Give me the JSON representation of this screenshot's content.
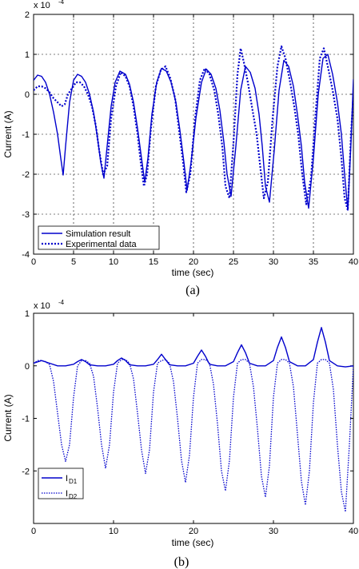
{
  "chart_data": [
    {
      "type": "line",
      "panel_caption": "(a)",
      "xlabel": "time (sec)",
      "ylabel": "Current (A)",
      "y_exponent_label": "x 10",
      "y_exponent_power": "-4",
      "xlim": [
        0,
        40
      ],
      "ylim": [
        -4,
        2
      ],
      "xticks": [
        "0",
        "5",
        "10",
        "15",
        "20",
        "25",
        "30",
        "35",
        "40"
      ],
      "yticks": [
        "-4",
        "-3",
        "-2",
        "-1",
        "0",
        "1",
        "2"
      ],
      "grid": true,
      "legend_position": "bottom-left",
      "color": "#0000cc",
      "series": [
        {
          "name": "Simulation result",
          "style": "solid",
          "x": [
            0,
            0.5,
            1,
            1.5,
            2,
            2.5,
            3,
            3.4,
            3.7,
            4,
            4.5,
            5,
            5.5,
            6,
            6.5,
            7,
            7.5,
            8,
            8.4,
            8.8,
            9.2,
            9.7,
            10.2,
            10.8,
            11.5,
            12,
            12.5,
            13,
            13.5,
            13.9,
            14.3,
            14.8,
            15.4,
            16,
            16.6,
            17.2,
            17.8,
            18.3,
            18.8,
            19.2,
            19.7,
            20.3,
            21,
            21.6,
            22.2,
            22.8,
            23.3,
            23.8,
            24.2,
            24.7,
            25.3,
            25.9,
            26.5,
            27.1,
            27.7,
            28.2,
            28.6,
            29,
            29.5,
            30.1,
            30.7,
            31.3,
            31.9,
            32.5,
            33,
            33.5,
            33.9,
            34.4,
            35,
            35.6,
            36.2,
            36.8,
            37.4,
            38,
            38.5,
            38.9,
            39.3,
            39.7,
            40
          ],
          "y": [
            0.35,
            0.48,
            0.45,
            0.3,
            0.0,
            -0.45,
            -1.0,
            -1.6,
            -2.02,
            -1.3,
            -0.2,
            0.35,
            0.5,
            0.45,
            0.3,
            0.0,
            -0.45,
            -1.1,
            -1.7,
            -2.1,
            -1.3,
            -0.3,
            0.3,
            0.58,
            0.5,
            0.25,
            -0.2,
            -0.85,
            -1.6,
            -2.2,
            -1.6,
            -0.5,
            0.3,
            0.65,
            0.58,
            0.3,
            -0.2,
            -0.9,
            -1.7,
            -2.4,
            -1.7,
            -0.6,
            0.3,
            0.63,
            0.5,
            0.15,
            -0.4,
            -1.2,
            -2.0,
            -2.55,
            -1.3,
            0.1,
            0.7,
            0.55,
            0.15,
            -0.5,
            -1.3,
            -2.3,
            -2.7,
            -1.4,
            0.1,
            0.85,
            0.7,
            0.2,
            -0.5,
            -1.3,
            -2.2,
            -2.85,
            -1.6,
            0.0,
            0.9,
            1.0,
            0.5,
            -0.2,
            -1.0,
            -2.0,
            -2.9,
            -1.2,
            0.38
          ]
        },
        {
          "name": "Experimental data",
          "style": "dotted",
          "x": [
            0,
            0.5,
            1,
            1.5,
            2,
            2.5,
            3,
            3.5,
            3.9,
            4.3,
            4.8,
            5.3,
            5.8,
            6.3,
            6.8,
            7.3,
            7.8,
            8.2,
            8.7,
            9.2,
            9.7,
            10.3,
            10.9,
            11.5,
            12,
            12.5,
            13,
            13.4,
            13.8,
            14.2,
            14.7,
            15.3,
            15.9,
            16.5,
            17.1,
            17.7,
            18.2,
            18.7,
            19.1,
            19.6,
            20.2,
            20.8,
            21.4,
            22,
            22.6,
            23.1,
            23.6,
            24,
            24.5,
            25,
            25.5,
            25.9,
            26.3,
            26.8,
            27.3,
            27.9,
            28.4,
            28.8,
            29.3,
            29.9,
            30.5,
            31,
            31.5,
            32,
            32.6,
            33.1,
            33.6,
            34.1,
            34.7,
            35.3,
            35.8,
            36.3,
            36.8,
            37.4,
            38,
            38.5,
            38.9,
            39.3,
            39.7,
            40
          ],
          "y": [
            0.1,
            0.2,
            0.2,
            0.15,
            0.05,
            -0.1,
            -0.2,
            -0.3,
            -0.25,
            0.0,
            0.15,
            0.3,
            0.3,
            0.2,
            0.0,
            -0.3,
            -0.8,
            -1.4,
            -2.0,
            -1.8,
            -0.6,
            0.2,
            0.55,
            0.45,
            0.2,
            -0.3,
            -1.0,
            -1.7,
            -2.3,
            -2.0,
            -0.8,
            0.2,
            0.6,
            0.7,
            0.4,
            -0.1,
            -0.9,
            -1.7,
            -2.45,
            -2.0,
            -0.6,
            0.35,
            0.65,
            0.5,
            0.1,
            -0.5,
            -1.3,
            -2.3,
            -2.6,
            -1.2,
            0.5,
            1.15,
            0.8,
            0.3,
            -0.3,
            -1.0,
            -1.9,
            -2.6,
            -2.2,
            -0.6,
            0.7,
            1.2,
            0.9,
            0.4,
            -0.3,
            -1.0,
            -2.0,
            -2.75,
            -2.1,
            -0.4,
            0.9,
            1.15,
            0.7,
            0.1,
            -0.6,
            -1.6,
            -2.6,
            -2.9,
            -1.0,
            0.0
          ]
        }
      ]
    },
    {
      "type": "line",
      "panel_caption": "(b)",
      "xlabel": "time (sec)",
      "ylabel": "Current (A)",
      "y_exponent_label": "x 10",
      "y_exponent_power": "-4",
      "xlim": [
        0,
        40
      ],
      "ylim": [
        -3,
        1
      ],
      "xticks": [
        "0",
        "10",
        "20",
        "30",
        "40"
      ],
      "yticks": [
        "-2",
        "-1",
        "0",
        "1"
      ],
      "grid": false,
      "legend_position": "bottom-left",
      "color": "#0000cc",
      "series": [
        {
          "name": "I",
          "name_sub": "D1",
          "style": "solid",
          "x": [
            0,
            1,
            2,
            3,
            4,
            5,
            5.5,
            6,
            6.5,
            7,
            8,
            9,
            10,
            10.5,
            11,
            11.5,
            12,
            13,
            14,
            15,
            15.5,
            16,
            16.5,
            17,
            18,
            19,
            20,
            20.5,
            21,
            21.5,
            22,
            23,
            24,
            25,
            25.5,
            26,
            26.5,
            27,
            28,
            29,
            30,
            30.5,
            31,
            31.5,
            32,
            33,
            34,
            35,
            35.5,
            36,
            36.5,
            37,
            38,
            39,
            40
          ],
          "y": [
            0.05,
            0.1,
            0.05,
            0.0,
            0.0,
            0.03,
            0.08,
            0.12,
            0.08,
            0.02,
            0.0,
            0.0,
            0.03,
            0.1,
            0.15,
            0.1,
            0.02,
            0.0,
            0.0,
            0.03,
            0.12,
            0.22,
            0.12,
            0.02,
            0.0,
            0.0,
            0.05,
            0.18,
            0.3,
            0.18,
            0.03,
            0.0,
            0.0,
            0.08,
            0.25,
            0.4,
            0.25,
            0.05,
            0.0,
            0.0,
            0.1,
            0.35,
            0.55,
            0.35,
            0.08,
            0.0,
            0.0,
            0.12,
            0.45,
            0.73,
            0.45,
            0.1,
            0.0,
            -0.02,
            0.0
          ]
        },
        {
          "name": "I",
          "name_sub": "D2",
          "style": "dotted",
          "x": [
            0,
            0.5,
            1,
            1.5,
            2,
            2.5,
            3,
            3.5,
            4,
            4.5,
            5,
            5.5,
            6,
            6.5,
            7,
            7.5,
            8,
            8.5,
            9,
            9.5,
            10,
            10.5,
            11,
            11.5,
            12,
            12.5,
            13,
            13.5,
            14,
            14.5,
            15,
            15.5,
            16,
            16.5,
            17,
            17.5,
            18,
            18.5,
            19,
            19.5,
            20,
            20.5,
            21,
            21.5,
            22,
            22.5,
            23,
            23.5,
            24,
            24.5,
            25,
            25.5,
            26,
            26.5,
            27,
            27.5,
            28,
            28.5,
            29,
            29.5,
            30,
            30.5,
            31,
            31.5,
            32,
            32.5,
            33,
            33.5,
            34,
            34.5,
            35,
            35.5,
            36,
            36.5,
            37,
            37.5,
            38,
            38.5,
            39,
            39.5,
            40
          ],
          "y": [
            0.05,
            0.1,
            0.1,
            0.08,
            0.02,
            -0.3,
            -0.9,
            -1.5,
            -1.82,
            -1.5,
            -0.6,
            0.0,
            0.1,
            0.1,
            0.05,
            -0.2,
            -0.8,
            -1.5,
            -1.95,
            -1.5,
            -0.5,
            0.05,
            0.12,
            0.12,
            0.05,
            -0.25,
            -0.9,
            -1.6,
            -2.05,
            -1.6,
            -0.5,
            0.05,
            0.1,
            0.12,
            0.05,
            -0.3,
            -1.0,
            -1.8,
            -2.22,
            -1.7,
            -0.6,
            0.05,
            0.12,
            0.12,
            0.05,
            -0.35,
            -1.1,
            -2.0,
            -2.38,
            -1.8,
            -0.6,
            0.05,
            0.12,
            0.12,
            0.05,
            -0.4,
            -1.2,
            -2.1,
            -2.5,
            -1.9,
            -0.6,
            0.05,
            0.12,
            0.12,
            0.05,
            -0.4,
            -1.3,
            -2.2,
            -2.65,
            -2.0,
            -0.7,
            0.05,
            0.12,
            0.12,
            0.05,
            -0.45,
            -1.5,
            -2.4,
            -2.78,
            -1.5,
            0.0
          ]
        }
      ]
    }
  ]
}
